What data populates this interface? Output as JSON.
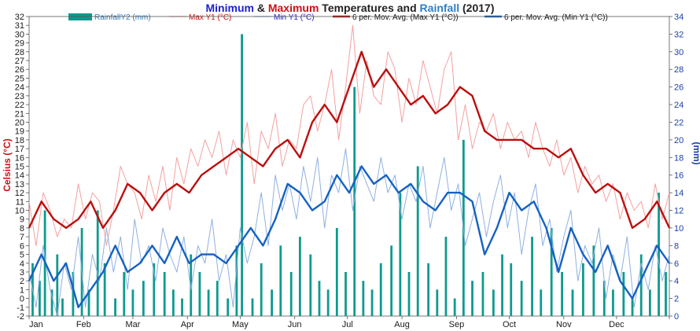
{
  "chart_data": {
    "type": "line",
    "title_parts": [
      {
        "text": "Minimum",
        "color": "#1b1fd1"
      },
      {
        "text": " & ",
        "color": "#222222"
      },
      {
        "text": "Maximum",
        "color": "#cc1111"
      },
      {
        "text": " Temperatures and ",
        "color": "#222222"
      },
      {
        "text": "Rainfall",
        "color": "#2e7fc4"
      },
      {
        "text": " (2017)",
        "color": "#222222"
      }
    ],
    "ylabel_left": "Celsius (°C)",
    "ylabel_right": "(mm)",
    "ylim_left": [
      -2,
      32
    ],
    "ylim_right": [
      0,
      34
    ],
    "left_ticks": [
      -2,
      -1,
      0,
      1,
      2,
      3,
      4,
      5,
      6,
      7,
      8,
      9,
      10,
      11,
      12,
      13,
      14,
      15,
      16,
      17,
      18,
      19,
      20,
      21,
      22,
      23,
      24,
      25,
      26,
      27,
      28,
      29,
      30,
      31,
      32
    ],
    "right_ticks": [
      0,
      2,
      4,
      6,
      8,
      10,
      12,
      14,
      16,
      18,
      20,
      22,
      24,
      26,
      28,
      30,
      32,
      34
    ],
    "months": [
      "Jan",
      "Feb",
      "Mar",
      "Apr",
      "May",
      "Jun",
      "Jul",
      "Aug",
      "Sep",
      "Oct",
      "Nov",
      "Dec"
    ],
    "grid": false,
    "legend_position": "top",
    "legend": [
      {
        "label": "RainfallY2 (mm)",
        "kind": "bar",
        "color": "#0e9a8e"
      },
      {
        "label": "Max Y1 (°C)",
        "kind": "line",
        "color": "#f4a0a0"
      },
      {
        "label": "Min Y1 (°C)",
        "kind": "line",
        "color": "#8fb0e0"
      },
      {
        "label": "6 per. Mov. Avg. (Max Y1 (°C))",
        "kind": "thick",
        "color": "#bb0f0f"
      },
      {
        "label": "6 per. Mov. Avg. (Min Y1 (°C))",
        "kind": "thick",
        "color": "#1562c0"
      }
    ],
    "series": [
      {
        "name": "6 per. Mov. Avg. (Max Y1 (°C))",
        "x": [
          1,
          8,
          15,
          22,
          29,
          36,
          43,
          50,
          57,
          64,
          71,
          78,
          85,
          92,
          99,
          106,
          113,
          120,
          127,
          134,
          141,
          148,
          155,
          162,
          169,
          176,
          183,
          190,
          197,
          204,
          211,
          218,
          225,
          232,
          239,
          246,
          253,
          260,
          267,
          274,
          281,
          288,
          295,
          302,
          309,
          316,
          323,
          330,
          337,
          344,
          351,
          358,
          365
        ],
        "values": [
          8,
          11,
          9,
          8,
          9,
          11,
          8,
          10,
          13,
          12,
          10,
          12,
          13,
          12,
          14,
          15,
          16,
          17,
          16,
          15,
          17,
          18,
          16,
          20,
          22,
          20,
          24,
          28,
          24,
          26,
          24,
          22,
          23,
          21,
          22,
          24,
          23,
          19,
          18,
          18,
          18,
          17,
          17,
          16,
          17,
          14,
          12,
          13,
          12,
          8,
          9,
          11,
          8
        ]
      },
      {
        "name": "6 per. Mov. Avg. (Min Y1 (°C))",
        "x": [
          1,
          8,
          15,
          22,
          29,
          36,
          43,
          50,
          57,
          64,
          71,
          78,
          85,
          92,
          99,
          106,
          113,
          120,
          127,
          134,
          141,
          148,
          155,
          162,
          169,
          176,
          183,
          190,
          197,
          204,
          211,
          218,
          225,
          232,
          239,
          246,
          253,
          260,
          267,
          274,
          281,
          288,
          295,
          302,
          309,
          316,
          323,
          330,
          337,
          344,
          351,
          358,
          365
        ],
        "values": [
          2,
          5,
          2,
          4,
          -1,
          1,
          3,
          6,
          3,
          4,
          6,
          4,
          7,
          4,
          5,
          5,
          4,
          6,
          8,
          6,
          9,
          13,
          12,
          10,
          11,
          14,
          12,
          15,
          13,
          14,
          12,
          13,
          11,
          10,
          12,
          12,
          11,
          5,
          8,
          12,
          10,
          11,
          8,
          3,
          8,
          5,
          3,
          6,
          2,
          0,
          3,
          6,
          4
        ]
      },
      {
        "name": "Max Y1 (°C)",
        "x": [
          1,
          5,
          9,
          13,
          17,
          21,
          25,
          29,
          33,
          37,
          41,
          45,
          49,
          53,
          57,
          61,
          65,
          69,
          73,
          77,
          81,
          85,
          89,
          93,
          97,
          101,
          105,
          109,
          113,
          117,
          121,
          125,
          129,
          133,
          137,
          141,
          145,
          149,
          153,
          157,
          161,
          165,
          169,
          173,
          177,
          181,
          185,
          189,
          193,
          197,
          201,
          205,
          209,
          213,
          217,
          221,
          225,
          229,
          233,
          237,
          241,
          245,
          249,
          253,
          257,
          261,
          265,
          269,
          273,
          277,
          281,
          285,
          289,
          293,
          297,
          301,
          305,
          309,
          313,
          317,
          321,
          325,
          329,
          333,
          337,
          341,
          345,
          349,
          353,
          357,
          361,
          365
        ],
        "values": [
          11,
          6,
          12,
          10,
          7,
          9,
          8,
          13,
          9,
          12,
          11,
          6,
          10,
          15,
          13,
          12,
          9,
          14,
          11,
          15,
          10,
          16,
          13,
          17,
          15,
          18,
          16,
          19,
          14,
          18,
          16,
          20,
          13,
          19,
          17,
          21,
          15,
          18,
          17,
          22,
          23,
          19,
          22,
          26,
          18,
          24,
          31,
          21,
          27,
          23,
          22,
          28,
          26,
          20,
          25,
          22,
          27,
          24,
          21,
          26,
          28,
          18,
          22,
          17,
          20,
          19,
          21,
          17,
          20,
          18,
          19,
          16,
          20,
          17,
          15,
          18,
          14,
          16,
          12,
          15,
          13,
          14,
          11,
          13,
          9,
          12,
          10,
          11,
          8,
          13,
          9,
          12
        ]
      },
      {
        "name": "Min Y1 (°C)",
        "x": [
          1,
          5,
          9,
          13,
          17,
          21,
          25,
          29,
          33,
          37,
          41,
          45,
          49,
          53,
          57,
          61,
          65,
          69,
          73,
          77,
          81,
          85,
          89,
          93,
          97,
          101,
          105,
          109,
          113,
          117,
          121,
          125,
          129,
          133,
          137,
          141,
          145,
          149,
          153,
          157,
          161,
          165,
          169,
          173,
          177,
          181,
          185,
          189,
          193,
          197,
          201,
          205,
          209,
          213,
          217,
          221,
          225,
          229,
          233,
          237,
          241,
          245,
          249,
          253,
          257,
          261,
          265,
          269,
          273,
          277,
          281,
          285,
          289,
          293,
          297,
          301,
          305,
          309,
          313,
          317,
          321,
          325,
          329,
          333,
          337,
          341,
          345,
          349,
          353,
          357,
          361,
          365
        ],
        "values": [
          3,
          -1,
          6,
          1,
          -2,
          4,
          1,
          7,
          -1,
          5,
          2,
          8,
          3,
          7,
          1,
          9,
          4,
          6,
          2,
          8,
          5,
          3,
          7,
          1,
          6,
          4,
          9,
          2,
          5,
          -1,
          8,
          4,
          7,
          12,
          6,
          14,
          10,
          13,
          9,
          15,
          11,
          16,
          8,
          14,
          12,
          17,
          10,
          15,
          13,
          11,
          16,
          12,
          14,
          9,
          13,
          11,
          15,
          8,
          12,
          16,
          10,
          13,
          6,
          9,
          12,
          7,
          11,
          14,
          8,
          12,
          5,
          10,
          13,
          6,
          9,
          3,
          7,
          10,
          2,
          6,
          4,
          8,
          0,
          5,
          2,
          7,
          -1,
          4,
          1,
          6,
          2,
          5
        ]
      },
      {
        "name": "RainfallY2 (mm)",
        "axis": "right",
        "x": [
          3,
          7,
          10,
          14,
          17,
          20,
          26,
          31,
          35,
          40,
          44,
          50,
          55,
          60,
          66,
          72,
          78,
          83,
          88,
          93,
          98,
          103,
          108,
          114,
          119,
          122,
          128,
          133,
          139,
          144,
          150,
          155,
          161,
          166,
          171,
          176,
          181,
          186,
          191,
          196,
          201,
          207,
          212,
          217,
          222,
          228,
          233,
          238,
          243,
          248,
          253,
          259,
          265,
          270,
          275,
          281,
          287,
          292,
          298,
          304,
          310,
          316,
          322,
          328,
          333,
          339,
          344,
          349,
          354,
          359,
          363
        ],
        "values": [
          6,
          4,
          12,
          3,
          7,
          2,
          5,
          10,
          3,
          12,
          6,
          2,
          5,
          3,
          4,
          6,
          5,
          3,
          2,
          7,
          5,
          3,
          4,
          2,
          8,
          32,
          2,
          6,
          3,
          8,
          5,
          9,
          7,
          4,
          3,
          10,
          5,
          26,
          4,
          3,
          6,
          8,
          14,
          5,
          17,
          6,
          3,
          9,
          2,
          20,
          4,
          5,
          3,
          7,
          6,
          4,
          9,
          3,
          10,
          5,
          3,
          6,
          8,
          4,
          3,
          5,
          2,
          7,
          3,
          14,
          5
        ]
      }
    ]
  }
}
